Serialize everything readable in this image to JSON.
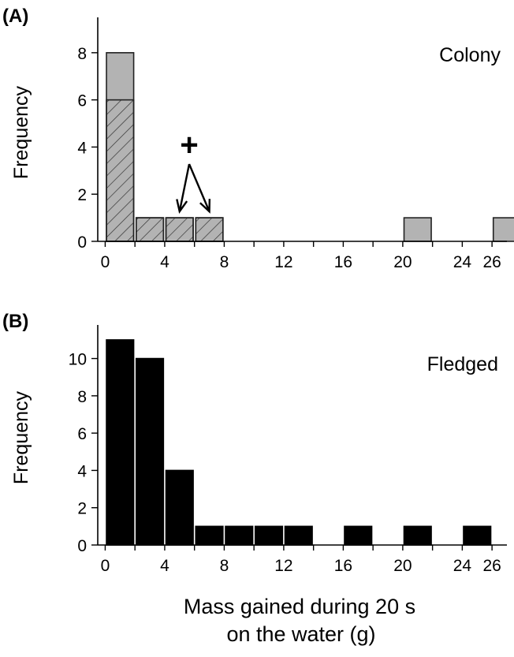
{
  "figure": {
    "xlabel_line1": "Mass gained during 20 s",
    "xlabel_line2": "on the water (g)"
  },
  "chart_data": [
    {
      "type": "bar",
      "panel_label": "(A)",
      "annotation": "Colony",
      "marker": "+",
      "title": "",
      "xlabel": "Mass gained during 20 s on the water (g)",
      "ylabel": "Frequency",
      "xlim": [
        -0.5,
        27
      ],
      "ylim": [
        0,
        9.5
      ],
      "xticks": [
        0,
        4,
        8,
        12,
        16,
        20,
        24,
        26
      ],
      "yticks": [
        0,
        2,
        4,
        6,
        8
      ],
      "bin_width": 2,
      "bins": [
        {
          "x0": 0,
          "x1": 2,
          "total": 8,
          "hatched": 6
        },
        {
          "x0": 2,
          "x1": 4,
          "total": 1,
          "hatched": 1
        },
        {
          "x0": 4,
          "x1": 6,
          "total": 1,
          "hatched": 1
        },
        {
          "x0": 6,
          "x1": 8,
          "total": 1,
          "hatched": 1
        },
        {
          "x0": 20,
          "x1": 22,
          "total": 1,
          "hatched": 0
        },
        {
          "x0": 26,
          "x1": 28,
          "total": 1,
          "hatched": 0
        }
      ],
      "arrow_targets": [
        5,
        7
      ],
      "colors": {
        "fill": "#b3b3b3",
        "hatch": "#333333",
        "edge": "#222222"
      }
    },
    {
      "type": "bar",
      "panel_label": "(B)",
      "annotation": "Fledged",
      "title": "",
      "xlabel": "Mass gained during 20 s on the water (g)",
      "ylabel": "Frequency",
      "xlim": [
        -0.5,
        27
      ],
      "ylim": [
        0,
        11.8
      ],
      "xticks": [
        0,
        4,
        8,
        12,
        16,
        20,
        24,
        26
      ],
      "yticks": [
        0,
        2,
        4,
        6,
        8,
        10
      ],
      "bin_width": 2,
      "bins": [
        {
          "x0": 0,
          "x1": 2,
          "total": 11
        },
        {
          "x0": 2,
          "x1": 4,
          "total": 10
        },
        {
          "x0": 4,
          "x1": 6,
          "total": 4
        },
        {
          "x0": 6,
          "x1": 8,
          "total": 1
        },
        {
          "x0": 8,
          "x1": 10,
          "total": 1
        },
        {
          "x0": 10,
          "x1": 12,
          "total": 1
        },
        {
          "x0": 12,
          "x1": 14,
          "total": 1
        },
        {
          "x0": 16,
          "x1": 18,
          "total": 1
        },
        {
          "x0": 20,
          "x1": 22,
          "total": 1
        },
        {
          "x0": 24,
          "x1": 26,
          "total": 1
        }
      ],
      "colors": {
        "fill": "#000000",
        "edge": "#000000"
      }
    }
  ]
}
